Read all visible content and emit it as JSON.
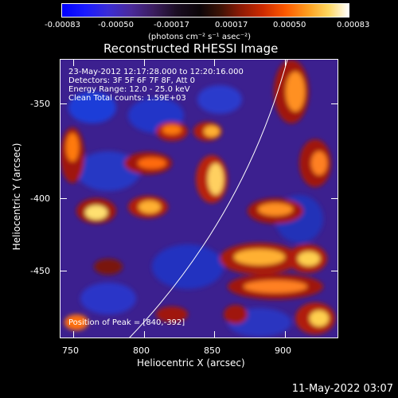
{
  "colorbar": {
    "ticks": [
      "-0.00083",
      "-0.00050",
      "-0.00017",
      "0.00017",
      "0.00050",
      "0.00083"
    ],
    "unit": "(photons cm⁻² s⁻¹ asec⁻²)"
  },
  "title": "Reconstructed RHESSI Image",
  "info": {
    "time": "23-May-2012 12:17:28.000 to 12:20:16.000",
    "detectors": "Detectors: 3F 5F 6F 7F 8F, Att 0",
    "energy": "Energy Range: 12.0 - 25.0 keV",
    "clean": "Clean  Total counts: 1.59E+03"
  },
  "peak": "Position of Peak = [840,-392]",
  "axes": {
    "x_title": "Heliocentric X (arcsec)",
    "y_title": "Heliocentric Y (arcsec)",
    "x_ticks": [
      "750",
      "800",
      "850",
      "900"
    ],
    "y_ticks": [
      "-350",
      "-400",
      "-450"
    ]
  },
  "footer": "11-May-2022 03:07"
}
